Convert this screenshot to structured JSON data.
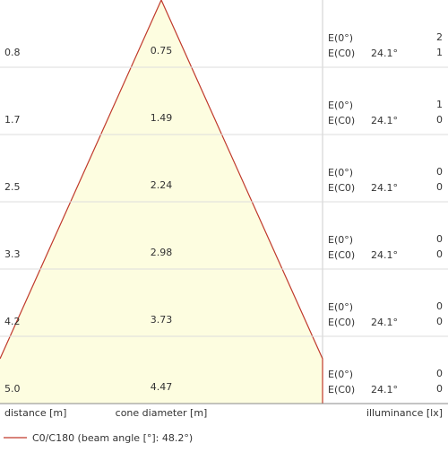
{
  "rows": [
    {
      "distance": "0.8",
      "diameter": "0.75",
      "e0_label": "E(0°)",
      "c0_label": "E(C0)",
      "angle": "24.1°",
      "e0": "2",
      "c0": "1"
    },
    {
      "distance": "1.7",
      "diameter": "1.49",
      "e0_label": "E(0°)",
      "c0_label": "E(C0)",
      "angle": "24.1°",
      "e0": "1",
      "c0": "0"
    },
    {
      "distance": "2.5",
      "diameter": "2.24",
      "e0_label": "E(0°)",
      "c0_label": "E(C0)",
      "angle": "24.1°",
      "e0": "0",
      "c0": "0"
    },
    {
      "distance": "3.3",
      "diameter": "2.98",
      "e0_label": "E(0°)",
      "c0_label": "E(C0)",
      "angle": "24.1°",
      "e0": "0",
      "c0": "0"
    },
    {
      "distance": "4.2",
      "diameter": "3.73",
      "e0_label": "E(0°)",
      "c0_label": "E(C0)",
      "angle": "24.1°",
      "e0": "0",
      "c0": "0"
    },
    {
      "distance": "5.0",
      "diameter": "4.47",
      "e0_label": "E(0°)",
      "c0_label": "E(C0)",
      "angle": "24.1°",
      "e0": "0",
      "c0": "0"
    }
  ],
  "axis": {
    "distance": "distance [m]",
    "diameter": "cone diameter [m]",
    "illuminance": "illuminance [lx]"
  },
  "legend": "C0/C180 (beam angle [°]: 48.2°)"
}
